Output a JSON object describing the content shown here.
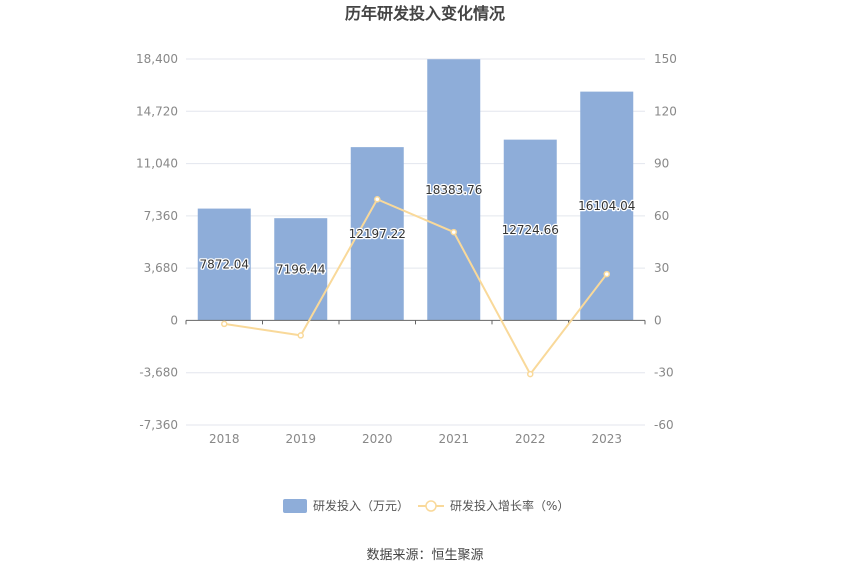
{
  "chart_data": {
    "type": "bar",
    "title": "历年研发投入变化情况",
    "categories": [
      "2018",
      "2019",
      "2020",
      "2021",
      "2022",
      "2023"
    ],
    "series": [
      {
        "name": "研发投入（万元）",
        "type": "bar",
        "axis": "left",
        "color": "#8eadd9",
        "values": [
          7872.04,
          7196.44,
          12197.22,
          18383.76,
          12724.66,
          16104.04
        ],
        "labels": [
          "7872.04",
          "7196.44",
          "12197.22",
          "18383.76",
          "12724.66",
          "16104.04"
        ]
      },
      {
        "name": "研发投入增长率（%）",
        "type": "line",
        "axis": "right",
        "color": "#f9d99a",
        "values": [
          -2.0,
          -8.6,
          69.5,
          50.7,
          -30.8,
          26.6
        ]
      }
    ],
    "y_left": {
      "ticks": [
        -7360,
        -3680,
        0,
        3680,
        7360,
        11040,
        14720,
        18400
      ],
      "tick_labels": [
        "-7,360",
        "-3,680",
        "0",
        "3,680",
        "7,360",
        "11,040",
        "14,720",
        "18,400"
      ],
      "ylim": [
        -7360,
        18400
      ]
    },
    "y_right": {
      "ticks": [
        -60,
        -30,
        0,
        30,
        60,
        90,
        120,
        150
      ],
      "tick_labels": [
        "-60",
        "-30",
        "0",
        "30",
        "60",
        "90",
        "120",
        "150"
      ],
      "ylim": [
        -60,
        150
      ]
    },
    "grid": true,
    "legend_position": "bottom"
  },
  "source_text": "数据来源：恒生聚源"
}
